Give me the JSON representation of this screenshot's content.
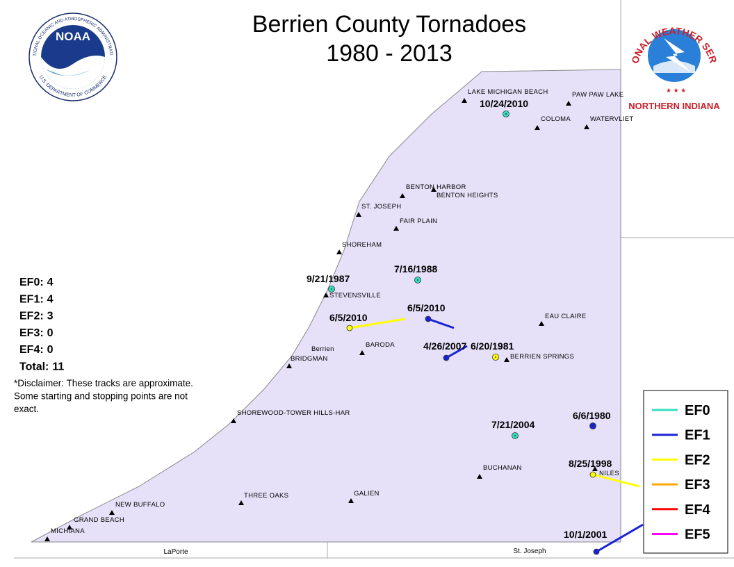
{
  "title_lines": [
    "Berrien County Tornadoes",
    "1980 - 2013"
  ],
  "logos": {
    "noaa": {
      "name": "NOAA",
      "ring_top": "NATIONAL OCEANIC AND ATMOSPHERIC ADMINISTRATION",
      "ring_bottom": "U.S. DEPARTMENT OF COMMERCE"
    },
    "nws": {
      "ring": "NATIONAL WEATHER SERVICE",
      "office": "NORTHERN INDIANA"
    }
  },
  "places": [
    "LAKE MICHIGAN BEACH",
    "PAW PAW LAKE",
    "COLOMA",
    "WATERVLIET",
    "BENTON HARBOR",
    "BENTON HEIGHTS",
    "ST. JOSEPH",
    "FAIR PLAIN",
    "SHOREHAM",
    "STEVENSVILLE",
    "EAU CLAIRE",
    "BARODA",
    "Berrien",
    "BRIDGMAN",
    "BERRIEN SPRINGS",
    "SHOREWOOD-TOWER HILLS-HAR",
    "BUCHANAN",
    "NILES",
    "THREE OAKS",
    "GALIEN",
    "NEW BUFFALO",
    "GRAND BEACH",
    "MICHIANA"
  ],
  "tornadoes": [
    {
      "date": "10/24/2010",
      "color": "#33e0c0"
    },
    {
      "date": "7/16/1988",
      "color": "#33e0c0"
    },
    {
      "date": "9/21/1987",
      "color": "#33e0c0"
    },
    {
      "date": "6/5/2010",
      "color": "#ffff00"
    },
    {
      "date": "6/5/2010",
      "color": "#1a22d6"
    },
    {
      "date": "4/26/2007",
      "color": "#1a22d6"
    },
    {
      "date": "6/20/1981",
      "color": "#ffff00"
    },
    {
      "date": "6/6/1980",
      "color": "#1a22d6"
    },
    {
      "date": "7/21/2004",
      "color": "#33e0c0"
    },
    {
      "date": "8/25/1998",
      "color": "#ffff00"
    },
    {
      "date": "10/1/2001",
      "color": "#1a22d6"
    }
  ],
  "summary": [
    {
      "label": "EF0:",
      "count": 4
    },
    {
      "label": "EF1:",
      "count": 4
    },
    {
      "label": "EF2:",
      "count": 3
    },
    {
      "label": "EF3:",
      "count": 0
    },
    {
      "label": "EF4:",
      "count": 0
    },
    {
      "label": "Total:",
      "count": 11
    }
  ],
  "disclaimer": [
    "*Disclaimer: These tracks are approximate.",
    "Some starting and stopping points are not",
    "exact."
  ],
  "legend": [
    {
      "label": "EF0",
      "color": "#33e0c0"
    },
    {
      "label": "EF1",
      "color": "#1a22d6"
    },
    {
      "label": "EF2",
      "color": "#ffff00"
    },
    {
      "label": "EF3",
      "color": "#ffa500"
    },
    {
      "label": "EF4",
      "color": "#ff0000"
    },
    {
      "label": "EF5",
      "color": "#ff00ff"
    }
  ],
  "neighbors": [
    "LaPorte",
    "St. Joseph"
  ]
}
